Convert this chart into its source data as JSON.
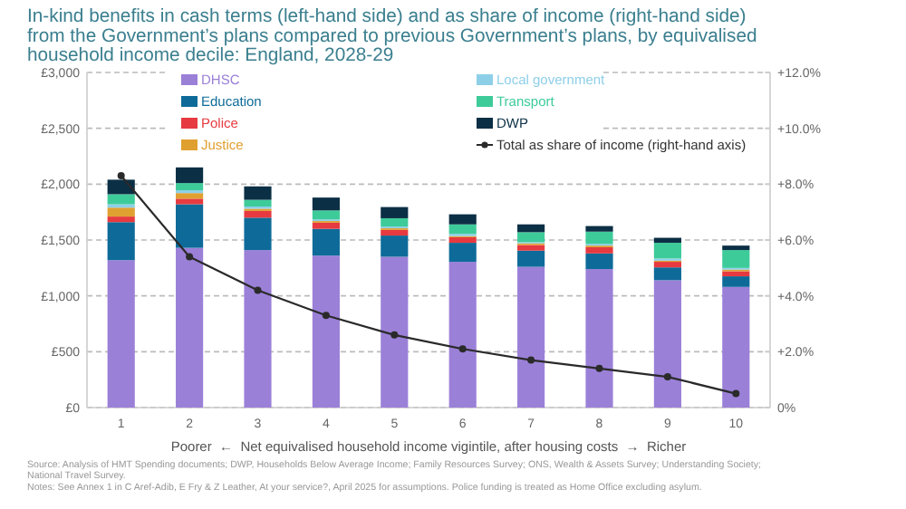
{
  "chart_data": {
    "type": "bar",
    "stacked": true,
    "title": "In-kind benefits in cash terms (left-hand side) and as share of income (right-hand side) from the Government’s plans compared to previous Government’s plans, by equivalised household income decile: England, 2028-29",
    "xlabel": "Poorer  ←  Net equivalised household income vigintile, after housing costs  →  Richer",
    "categories": [
      "1",
      "2",
      "3",
      "4",
      "5",
      "6",
      "7",
      "8",
      "9",
      "10"
    ],
    "series": [
      {
        "name": "DHSC",
        "color": "#9b80d8",
        "values": [
          1320,
          1430,
          1410,
          1360,
          1350,
          1305,
          1260,
          1240,
          1140,
          1080
        ]
      },
      {
        "name": "Education",
        "color": "#0e6b99",
        "values": [
          340,
          390,
          290,
          240,
          190,
          170,
          145,
          140,
          115,
          95
        ]
      },
      {
        "name": "Police",
        "color": "#e63a40",
        "values": [
          50,
          50,
          60,
          55,
          50,
          50,
          50,
          55,
          50,
          45
        ]
      },
      {
        "name": "Justice",
        "color": "#e0a030",
        "values": [
          80,
          50,
          20,
          15,
          15,
          10,
          15,
          15,
          10,
          15
        ]
      },
      {
        "name": "Local government",
        "color": "#8ecfe8",
        "values": [
          30,
          25,
          20,
          15,
          15,
          20,
          10,
          15,
          20,
          15
        ]
      },
      {
        "name": "Transport",
        "color": "#3ecb9a",
        "values": [
          90,
          65,
          60,
          80,
          75,
          85,
          90,
          110,
          140,
          160
        ]
      },
      {
        "name": "DWP",
        "color": "#0b2f45",
        "values": [
          130,
          140,
          120,
          115,
          100,
          90,
          70,
          50,
          45,
          40
        ]
      },
      {
        "name": "Total as share of income (right-hand axis)",
        "type": "line",
        "axis": "y2",
        "color": "#2a2a2a",
        "marker": "circle",
        "values": [
          8.3,
          5.4,
          4.2,
          3.3,
          2.6,
          2.1,
          1.7,
          1.4,
          1.1,
          0.5
        ]
      }
    ],
    "ylim": [
      0,
      3000
    ],
    "yticks": [
      {
        "value": 0,
        "label": "£0"
      },
      {
        "value": 500,
        "label": "£500"
      },
      {
        "value": 1000,
        "label": "£1,000"
      },
      {
        "value": 1500,
        "label": "£1,500"
      },
      {
        "value": 2000,
        "label": "£2,000"
      },
      {
        "value": 2500,
        "label": "£2,500"
      },
      {
        "value": 3000,
        "label": "£3,000"
      }
    ],
    "y2lim": [
      0,
      12
    ],
    "y2ticks": [
      {
        "value": 0,
        "label": "0%"
      },
      {
        "value": 2,
        "label": "+2.0%"
      },
      {
        "value": 4,
        "label": "+4.0%"
      },
      {
        "value": 6,
        "label": "+6.0%"
      },
      {
        "value": 8,
        "label": "+8.0%"
      },
      {
        "value": 10,
        "label": "+10.0%"
      },
      {
        "value": 12,
        "label": "+12.0%"
      }
    ],
    "grid": "y",
    "legend": "top",
    "annotations": [
      "Source: Analysis of HMT Spending documents; DWP, Households Below Average Income; Family Resources Survey; ONS, Wealth & Assets Survey; Understanding Society; National Travel Survey.",
      "Notes: See Annex 1 in C Aref-Adib, E Fry & Z Leather, At your service?, April 2025 for assumptions. Police funding is treated as Home Office excluding asylum."
    ]
  }
}
